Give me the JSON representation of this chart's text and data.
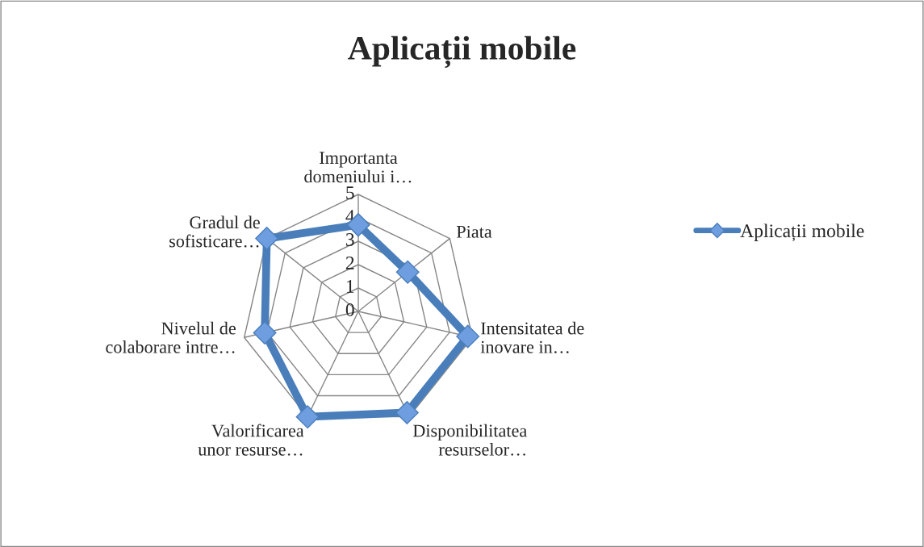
{
  "chart_data": {
    "type": "radar",
    "title": "Aplicații mobile",
    "categories": [
      "Importanta\ndomeniului i…",
      "Piata",
      "Intensitatea de\ninovare in…",
      "Disponibilitatea\nresurselor…",
      "Valorificarea\nunor resurse…",
      "Nivelul de\ncolaborare intre…",
      "Gradul de\nsofisticare…"
    ],
    "series": [
      {
        "name": "Aplicații mobile",
        "color": "#4a7ebb",
        "values": [
          3.7,
          2.7,
          4.8,
          4.8,
          5,
          4.1,
          5
        ]
      }
    ],
    "ylim": [
      0,
      5
    ],
    "yticks": [
      0,
      1,
      2,
      3,
      4,
      5
    ],
    "grid": true,
    "legend": "right",
    "marker": "diamond",
    "line_style": "solid"
  }
}
